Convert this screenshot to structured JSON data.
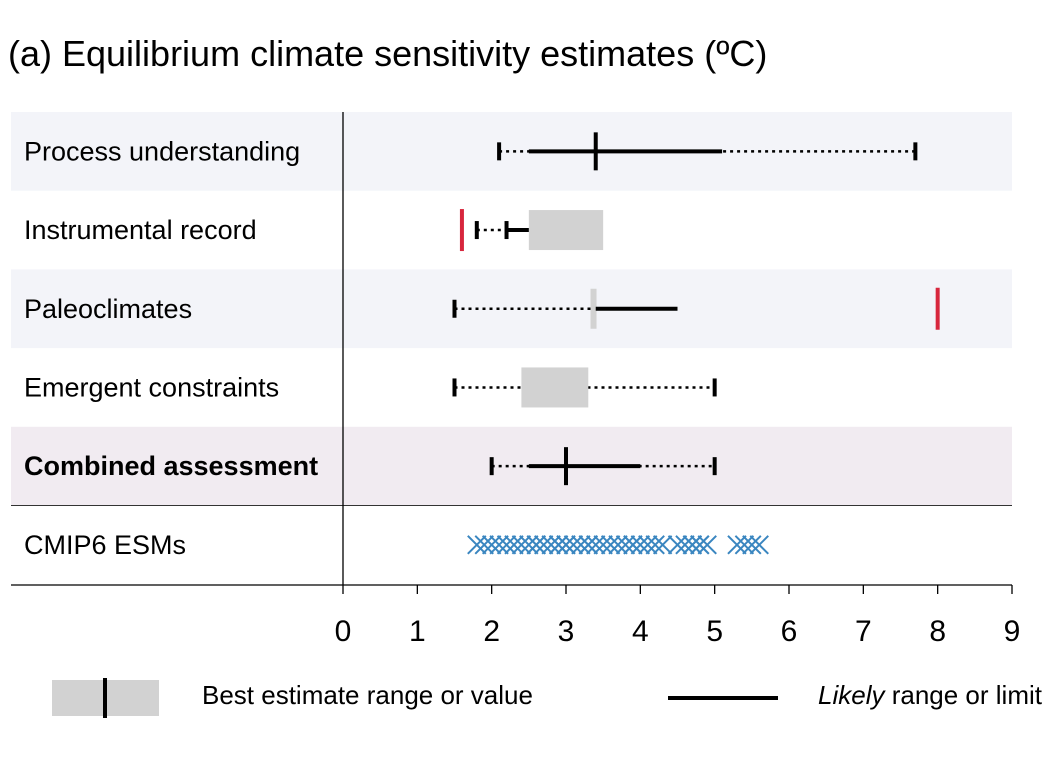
{
  "chart_data": {
    "type": "range",
    "title": "(a) Equilibrium climate sensitivity  estimates (ºC)",
    "xlim": [
      0,
      9
    ],
    "xticks": [
      "0",
      "1",
      "2",
      "3",
      "4",
      "5",
      "6",
      "7",
      "8",
      "9"
    ],
    "rows": [
      {
        "label": "Process understanding",
        "bold": false,
        "shaded": "#f3f4f9",
        "very_likely": [
          2.1,
          7.7
        ],
        "likely": [
          2.5,
          5.1
        ],
        "best_value": 3.4
      },
      {
        "label": "Instrumental record",
        "bold": false,
        "shaded": null,
        "very_likely": [
          1.8,
          2.2
        ],
        "likely": [
          2.2,
          2.5
        ],
        "best_range": [
          2.5,
          3.5
        ],
        "red_marks": [
          1.6
        ]
      },
      {
        "label": "Paleoclimates",
        "bold": false,
        "shaded": "#f3f4f9",
        "very_likely": [
          1.5,
          3.33
        ],
        "likely": [
          3.4,
          4.5
        ],
        "best_range": [
          3.33,
          3.4
        ],
        "very_likely_end_cap": false,
        "red_marks": [
          8.0
        ]
      },
      {
        "label": "Emergent constraints",
        "bold": false,
        "shaded": null,
        "very_likely": [
          1.5,
          5.0
        ],
        "best_range": [
          2.4,
          3.3
        ]
      },
      {
        "label": "Combined assessment",
        "bold": true,
        "shaded": "#f1ebf1",
        "very_likely": [
          2.0,
          5.0
        ],
        "likely": [
          2.5,
          4.0
        ],
        "best_value": 3.0
      },
      {
        "label": "CMIP6 ESMs",
        "bold": false,
        "shaded": null,
        "models": [
          1.8,
          1.9,
          2.0,
          2.1,
          2.2,
          2.3,
          2.4,
          2.5,
          2.6,
          2.6,
          2.7,
          2.8,
          2.9,
          2.9,
          3.0,
          3.0,
          3.1,
          3.2,
          3.3,
          3.3,
          3.4,
          3.5,
          3.6,
          3.7,
          3.8,
          3.9,
          3.9,
          4.0,
          4.1,
          4.2,
          4.3,
          4.5,
          4.6,
          4.7,
          4.7,
          4.8,
          4.8,
          4.9,
          5.3,
          5.4,
          5.5,
          5.6
        ]
      }
    ],
    "colors": {
      "range": "#000000",
      "best_box": "#d2d2d2",
      "red": "#d7263d",
      "model": "#3a86c0"
    },
    "legend": {
      "best_label": "Best estimate range or value",
      "likely_italic": "Likely",
      "likely_rest": " range or limit"
    }
  }
}
